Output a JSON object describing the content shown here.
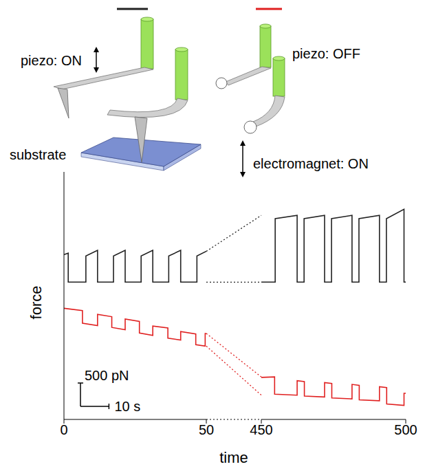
{
  "diagram": {
    "piezo_on": "piezo: ON",
    "piezo_off": "piezo: OFF",
    "substrate": "substrate",
    "electromagnet_on": "electromagnet: ON"
  },
  "chart_data": {
    "type": "line",
    "xlabel": "time",
    "ylabel": "force",
    "ylim": [
      0,
      5300
    ],
    "yticks": [
      1000,
      2000,
      3000,
      4000,
      5000
    ],
    "tick_labels": "x",
    "scale_bar": {
      "y": 500,
      "y_label": "500 pN",
      "x": 10,
      "x_label": "10 s"
    },
    "panels": [
      {
        "xlim": [
          0,
          50
        ],
        "xticks": [
          0,
          50
        ],
        "series": [
          {
            "color": "#222222",
            "x": [
              0,
              1.5,
              1.5,
              7.7,
              7.7,
              11.8,
              11.8,
              17.4,
              17.4,
              21.5,
              21.5,
              27.1,
              27.1,
              31.2,
              31.2,
              36.8,
              36.8,
              41,
              41,
              46.7,
              46.7,
              50
            ],
            "values": [
              3530,
              3560,
              2940,
              2940,
              3500,
              3620,
              2940,
              2940,
              3500,
              3620,
              2940,
              2940,
              3500,
              3620,
              2940,
              2940,
              3500,
              3620,
              2940,
              2940,
              3500,
              3600
            ]
          },
          {
            "color": "#e02020",
            "x": [
              0,
              6.5,
              6.5,
              11.8,
              11.8,
              16.8,
              16.8,
              21.5,
              21.5,
              26.5,
              26.5,
              31.2,
              31.2,
              36.5,
              36.5,
              41,
              41,
              46.3,
              46.3,
              49.6,
              49.6,
              50
            ],
            "values": [
              2380,
              2330,
              2060,
              2010,
              2250,
              2200,
              1970,
              1920,
              2150,
              2100,
              1850,
              1800,
              2000,
              1960,
              1740,
              1700,
              1880,
              1830,
              1600,
              1570,
              1840,
              1840
            ]
          }
        ]
      },
      {
        "xlim": [
          450,
          500
        ],
        "xticks": [
          450,
          500
        ],
        "series": [
          {
            "color": "#222222",
            "x": [
              450,
              454.8,
              454.8,
              462.4,
              462.4,
              464.8,
              464.8,
              471.9,
              471.9,
              474.3,
              474.3,
              481.4,
              481.4,
              483.8,
              483.8,
              490.9,
              490.9,
              493.3,
              493.3,
              499.4,
              499.4,
              500
            ],
            "values": [
              2940,
              2940,
              4300,
              4370,
              2940,
              2940,
              4300,
              4370,
              2940,
              2940,
              4300,
              4370,
              2940,
              2940,
              4300,
              4370,
              2940,
              2940,
              4300,
              4500,
              2940,
              2940
            ]
          },
          {
            "color": "#e02020",
            "x": [
              450,
              454.6,
              454.6,
              462.4,
              462.4,
              464.9,
              464.9,
              471.9,
              471.9,
              474.4,
              474.4,
              481.4,
              481.4,
              483.9,
              483.9,
              490.9,
              490.9,
              493.4,
              493.4,
              499.4,
              499.4,
              500
            ],
            "values": [
              900,
              910,
              540,
              520,
              830,
              810,
              500,
              480,
              790,
              770,
              460,
              440,
              750,
              730,
              420,
              400,
              700,
              680,
              330,
              300,
              560,
              560
            ]
          }
        ]
      }
    ]
  }
}
